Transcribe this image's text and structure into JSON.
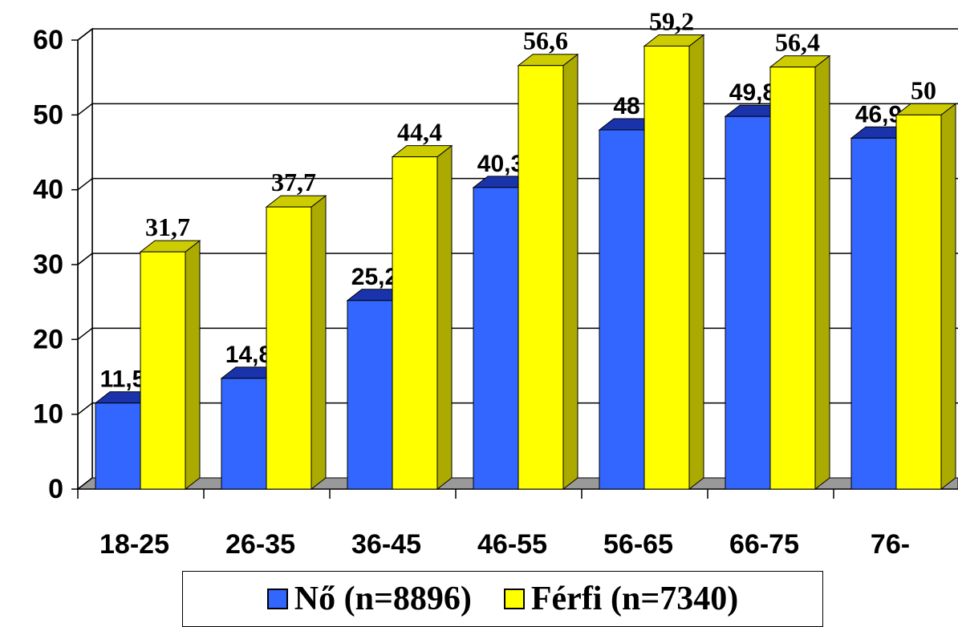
{
  "chart_data": {
    "type": "bar",
    "categories": [
      "18-25",
      "26-35",
      "36-45",
      "46-55",
      "56-65",
      "66-75",
      "76-"
    ],
    "series": [
      {
        "name": "Nő (n=8896)",
        "values": [
          11.5,
          14.8,
          25.2,
          40.3,
          48,
          49.8,
          46.9
        ],
        "labels": [
          "11,5",
          "14,8",
          "25,2",
          "40,3",
          "48",
          "49,8",
          "46,9"
        ],
        "color": "#3366ff"
      },
      {
        "name": "Férfi (n=7340)",
        "values": [
          31.7,
          37.7,
          44.4,
          56.6,
          59.2,
          56.4,
          50
        ],
        "labels": [
          "31,7",
          "37,7",
          "44,4",
          "56,6",
          "59,2",
          "56,4",
          "50"
        ],
        "color": "#ffff00"
      }
    ],
    "yticks": [
      "0",
      "10",
      "20",
      "30",
      "40",
      "50",
      "60"
    ],
    "ylim": [
      0,
      60
    ],
    "grid": true,
    "legend": "bottom",
    "three_d": true
  }
}
